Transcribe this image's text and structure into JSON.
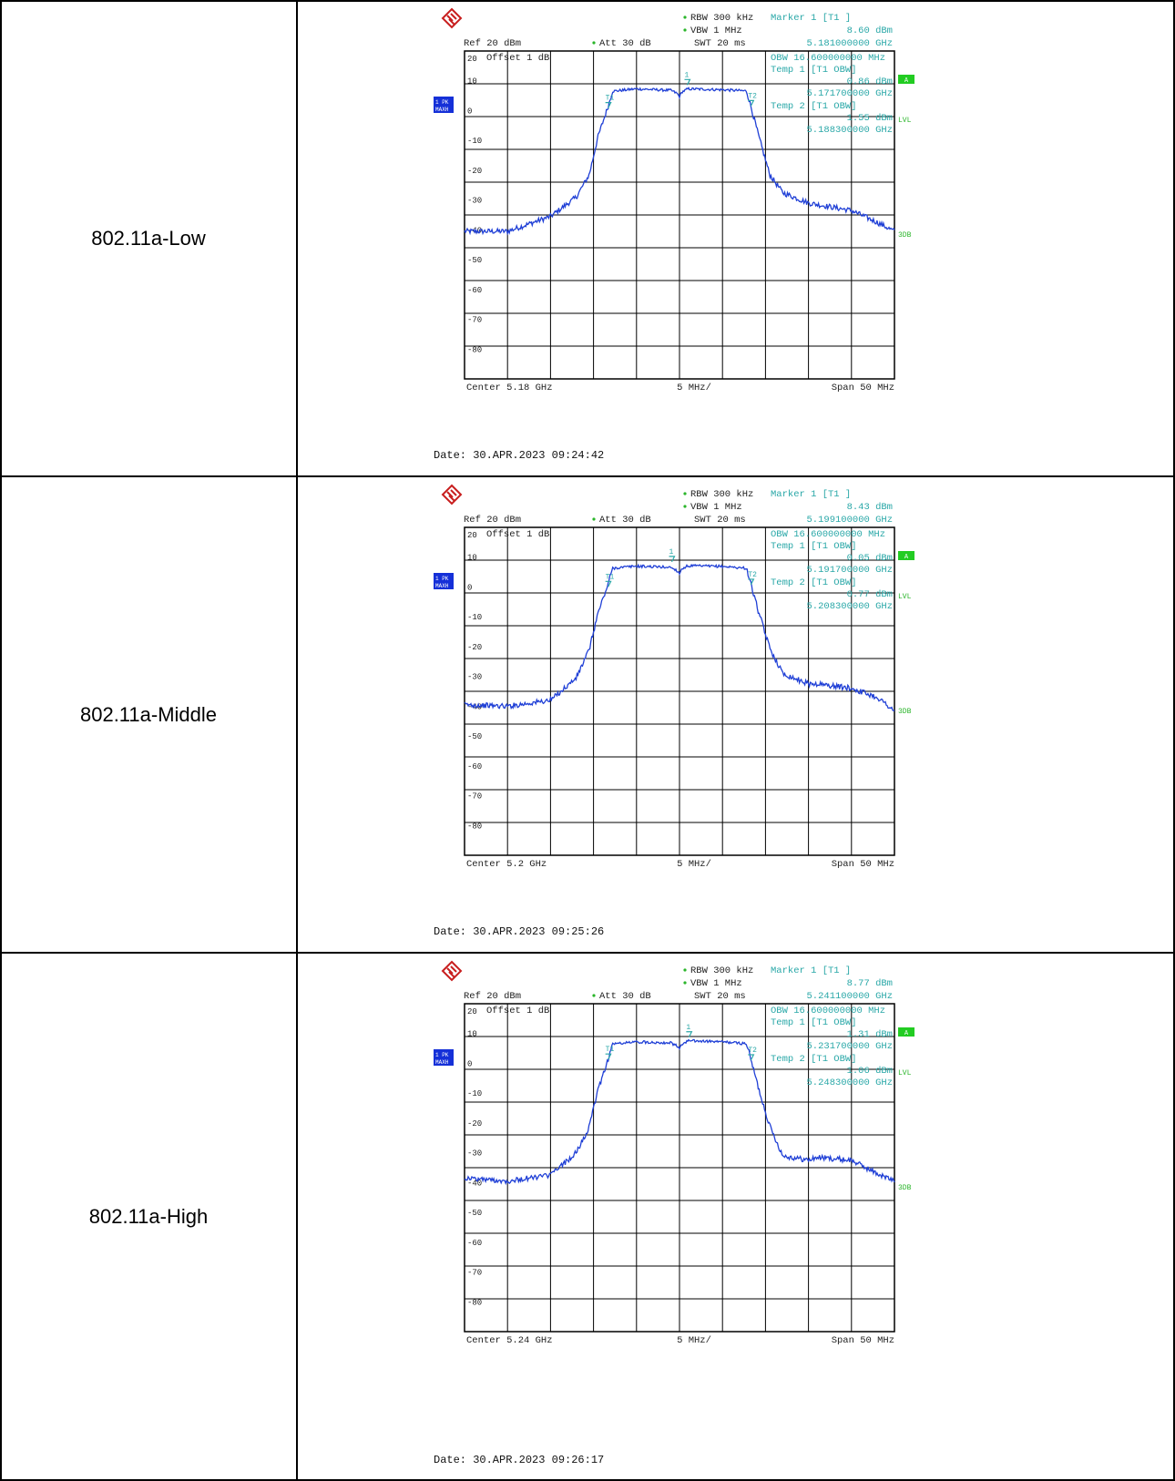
{
  "table": {
    "rows": [
      {
        "label": "802.11a-Low",
        "header": {
          "rbw": "RBW 300 kHz",
          "vbw": "VBW 1 MHz",
          "swt": "SWT 20 ms",
          "ref": "Ref  20 dBm",
          "att": "Att  30 dB",
          "marker_title": "Marker 1 [T1 ]",
          "marker_level": "8.60 dBm",
          "marker_freq": "5.181000000 GHz"
        },
        "overlay": {
          "obw": "OBW 16.600000000 MHz",
          "temp1_title": "Temp 1  [T1 OBW]",
          "temp1_level": "0.86 dBm",
          "temp1_freq": "5.171700000 GHz",
          "temp2_title": "Temp 2  [T1 OBW]",
          "temp2_level": "1.55 dBm",
          "temp2_freq": "5.188300000 GHz"
        },
        "offset_text": "Offset  1 dB",
        "side": {
          "trace_tag_1": "1 PK",
          "trace_tag_2": "MAXH",
          "a": "A",
          "lvl": "LVL",
          "threedb": "3DB"
        },
        "footer": {
          "center": "Center 5.18 GHz",
          "div": "5 MHz/",
          "span": "Span 50 MHz"
        },
        "date": "Date: 30.APR.2023  09:24:42"
      },
      {
        "label": "802.11a-Middle",
        "header": {
          "rbw": "RBW 300 kHz",
          "vbw": "VBW 1 MHz",
          "swt": "SWT 20 ms",
          "ref": "Ref  20 dBm",
          "att": "Att  30 dB",
          "marker_title": "Marker 1 [T1 ]",
          "marker_level": "8.43 dBm",
          "marker_freq": "5.199100000 GHz"
        },
        "overlay": {
          "obw": "OBW 16.600000000 MHz",
          "temp1_title": "Temp 1  [T1 OBW]",
          "temp1_level": "0.05 dBm",
          "temp1_freq": "5.191700000 GHz",
          "temp2_title": "Temp 2  [T1 OBW]",
          "temp2_level": "0.77 dBm",
          "temp2_freq": "5.208300000 GHz"
        },
        "offset_text": "Offset  1 dB",
        "side": {
          "trace_tag_1": "1 PK",
          "trace_tag_2": "MAXH",
          "a": "A",
          "lvl": "LVL",
          "threedb": "3DB"
        },
        "footer": {
          "center": "Center 5.2 GHz",
          "div": "5 MHz/",
          "span": "Span 50 MHz"
        },
        "date": "Date: 30.APR.2023  09:25:26"
      },
      {
        "label": "802.11a-High",
        "header": {
          "rbw": "RBW 300 kHz",
          "vbw": "VBW 1 MHz",
          "swt": "SWT 20 ms",
          "ref": "Ref  20 dBm",
          "att": "Att  30 dB",
          "marker_title": "Marker 1 [T1 ]",
          "marker_level": "8.77 dBm",
          "marker_freq": "5.241100000 GHz"
        },
        "overlay": {
          "obw": "OBW 16.600000000 MHz",
          "temp1_title": "Temp 1  [T1 OBW]",
          "temp1_level": "1.31 dBm",
          "temp1_freq": "5.231700000 GHz",
          "temp2_title": "Temp 2  [T1 OBW]",
          "temp2_level": "1.06 dBm",
          "temp2_freq": "5.248300000 GHz"
        },
        "offset_text": "Offset  1 dB",
        "side": {
          "trace_tag_1": "1 PK",
          "trace_tag_2": "MAXH",
          "a": "A",
          "lvl": "LVL",
          "threedb": "3DB"
        },
        "footer": {
          "center": "Center 5.24 GHz",
          "div": "5 MHz/",
          "span": "Span 50 MHz"
        },
        "date": "Date: 30.APR.2023  09:26:17"
      }
    ]
  },
  "chart_data": [
    {
      "type": "line",
      "title": "802.11a-Low",
      "x_unit": "MHz offset from center",
      "xlim": [
        -25,
        25
      ],
      "ylim": [
        -90,
        20
      ],
      "yticks": [
        20,
        10,
        0,
        -10,
        -20,
        -30,
        -40,
        -50,
        -60,
        -70,
        -80
      ],
      "grid": true,
      "colors": {
        "trace": "#1f3fd6",
        "annotation": "#2aa8a8",
        "grid": "#000000"
      },
      "markers": {
        "m1": [
          0.9,
          8.6
        ],
        "t1": [
          -8.3,
          0.86
        ],
        "t2": [
          8.3,
          1.55
        ]
      },
      "series": [
        {
          "x": [
            -25,
            -20,
            -15,
            -12,
            -10.5,
            -9.5,
            -8.3,
            -7.8,
            -5,
            -1,
            -0.3,
            0,
            0.3,
            1,
            5,
            7.8,
            8.3,
            9.2,
            10.5,
            12,
            15,
            16,
            20,
            23,
            25
          ],
          "y": [
            -40.5,
            -40.5,
            -35.5,
            -29,
            -21.5,
            -9,
            1.5,
            6.5,
            7.3,
            6.8,
            5.8,
            4.7,
            6.3,
            7.3,
            7.0,
            6.6,
            1.5,
            -8.5,
            -21.5,
            -27.5,
            -31,
            -31.5,
            -33.5,
            -37.5,
            -40.5
          ]
        }
      ]
    },
    {
      "type": "line",
      "title": "802.11a-Middle",
      "x_unit": "MHz offset from center",
      "xlim": [
        -25,
        25
      ],
      "ylim": [
        -90,
        20
      ],
      "yticks": [
        20,
        10,
        0,
        -10,
        -20,
        -30,
        -40,
        -50,
        -60,
        -70,
        -80
      ],
      "grid": true,
      "colors": {
        "trace": "#1f3fd6",
        "annotation": "#2aa8a8",
        "grid": "#000000"
      },
      "markers": {
        "m1": [
          -0.9,
          8.43
        ],
        "t1": [
          -8.3,
          0.05
        ],
        "t2": [
          8.3,
          0.77
        ]
      },
      "series": [
        {
          "x": [
            -25,
            -20,
            -15,
            -12,
            -10.5,
            -9.5,
            -8.3,
            -7.8,
            -5,
            -1,
            -0.3,
            0,
            0.3,
            1,
            5,
            7.8,
            8.3,
            9.2,
            10.5,
            12,
            15,
            16,
            20,
            23,
            25
          ],
          "y": [
            -39.5,
            -40,
            -38,
            -30.5,
            -21,
            -9,
            1,
            6.3,
            7,
            6.6,
            5.5,
            4.6,
            6.2,
            7.1,
            6.9,
            6.3,
            1,
            -8.5,
            -20.5,
            -29,
            -32.5,
            -32.5,
            -34,
            -37,
            -41.5
          ]
        }
      ]
    },
    {
      "type": "line",
      "title": "802.11a-High",
      "x_unit": "MHz offset from center",
      "xlim": [
        -25,
        25
      ],
      "ylim": [
        -90,
        20
      ],
      "yticks": [
        20,
        10,
        0,
        -10,
        -20,
        -30,
        -40,
        -50,
        -60,
        -70,
        -80
      ],
      "grid": true,
      "colors": {
        "trace": "#1f3fd6",
        "annotation": "#2aa8a8",
        "grid": "#000000"
      },
      "markers": {
        "m1": [
          1.1,
          8.77
        ],
        "t1": [
          -8.3,
          1.31
        ],
        "t2": [
          8.3,
          1.06
        ]
      },
      "series": [
        {
          "x": [
            -25,
            -20,
            -15,
            -12,
            -10.5,
            -9.5,
            -8.3,
            -7.8,
            -5,
            -1,
            -0.3,
            0,
            0.3,
            1,
            5,
            7.8,
            8.3,
            9.2,
            10.5,
            12,
            15,
            16,
            20,
            23,
            25
          ],
          "y": [
            -38.5,
            -39.5,
            -37.5,
            -30,
            -21.5,
            -9,
            1.4,
            6.5,
            7.2,
            6.9,
            5.8,
            4.8,
            6.4,
            7.6,
            7.2,
            6.6,
            1.4,
            -8.5,
            -21,
            -31,
            -32.5,
            -31.5,
            -32.5,
            -37,
            -39.5
          ]
        }
      ]
    }
  ]
}
